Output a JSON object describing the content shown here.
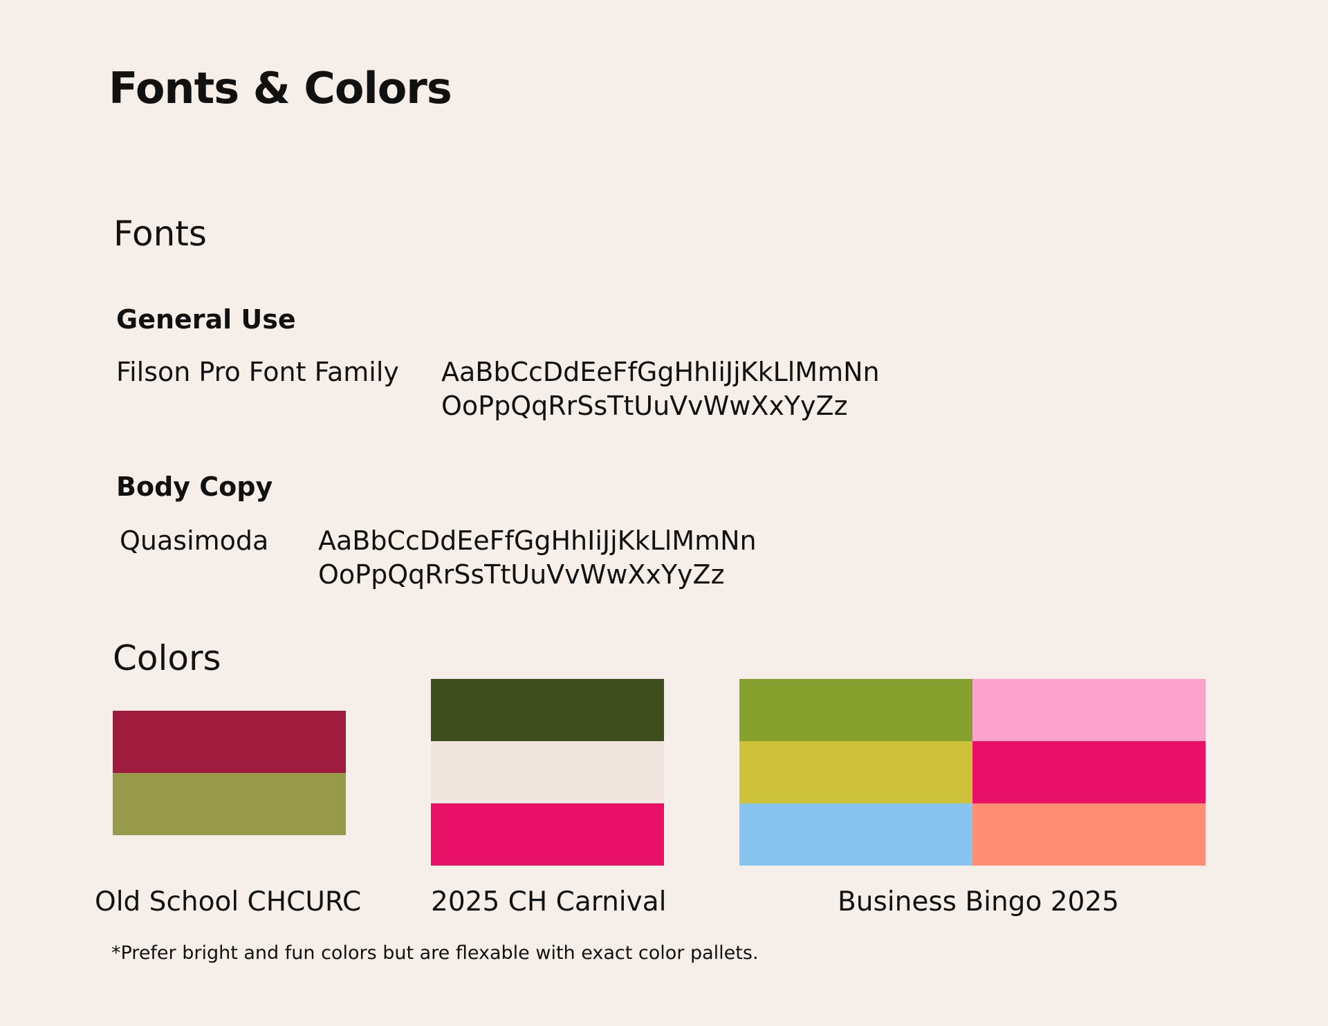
{
  "title": "Fonts & Colors",
  "fonts_section": {
    "heading": "Fonts",
    "general_use": {
      "label": "General Use",
      "font_name": "Filson Pro Font Family",
      "sample_line_1": "AaBbCcDdEeFfGgHhIiJjKkLlMmNn",
      "sample_line_2": "OoPpQqRrSsTtUuVvWwXxYyZz"
    },
    "body_copy": {
      "label": "Body Copy",
      "font_name": "Quasimoda",
      "sample_line_1": "AaBbCcDdEeFfGgHhIiJjKkLlMmNn",
      "sample_line_2": "OoPpQqRrSsTtUuVvWwXxYyZz"
    }
  },
  "colors_section": {
    "heading": "Colors",
    "palettes": [
      {
        "name": "Old School CHCURC",
        "colors": [
          "#a01c3f",
          "#979a4b"
        ]
      },
      {
        "name": "2025 CH Carnival",
        "colors": [
          "#3f4e1c",
          "#f0e6dd",
          "#e91068"
        ]
      },
      {
        "name": "Business Bingo 2025",
        "colors": [
          "#87a02e",
          "#fda2cd",
          "#cec23a",
          "#e91068",
          "#87c5f0",
          "#ff8e74"
        ]
      }
    ]
  },
  "footnote": "*Prefer bright and fun colors but are flexable with exact color pallets."
}
